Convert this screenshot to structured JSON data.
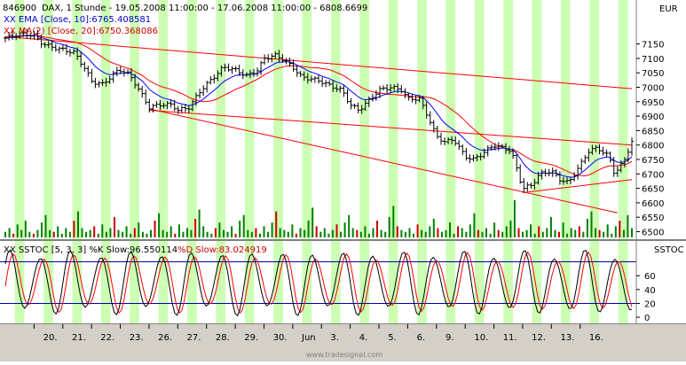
{
  "header": {
    "symbol": "846900",
    "description": "DAX, 1 Stunde - 19.05.2008 11:00:00 - 17.06.2008 11:00:00 - 6808.6699",
    "currency": "EUR"
  },
  "legend": {
    "ema": "XX EMA [Close, 10]:6765.408581",
    "ma": "XX MA(2) [Close, 20]:6750.368086",
    "stoch_k": "XX SSTOC [5, 3, 3] %K Slow:96.550114",
    "stoch_d": "%D Slow:83.024919",
    "stoch_panel": "SSTOC"
  },
  "colors": {
    "background": "#ffffff",
    "band_green": "#ccffb3",
    "price_ink": "#000000",
    "ema": "#0000ff",
    "ma": "#ff0000",
    "trendline": "#ff0000",
    "volume": "#008000",
    "volume_down": "#cc0000",
    "stoch_k": "#000000",
    "stoch_d": "#ff0000",
    "stoch_levels": "#0000aa"
  },
  "watermark": "www.tradesignal.com",
  "chart_data": {
    "type": "ohlc",
    "title": "DAX, 1 Stunde",
    "currency": "EUR",
    "y_ticks": [
      6500,
      6550,
      6600,
      6650,
      6700,
      6750,
      6800,
      6850,
      6900,
      6950,
      7000,
      7050,
      7100,
      7150
    ],
    "y_range": [
      6480,
      7210
    ],
    "x_labels": [
      "20.",
      "21.",
      "22.",
      "23.",
      "26.",
      "27.",
      "28.",
      "29.",
      "30.",
      "Jun",
      "3.",
      "4.",
      "5.",
      "6.",
      "9.",
      "10.",
      "11.",
      "12.",
      "13.",
      "16."
    ],
    "sessions": [
      "19.05",
      "20.05",
      "21.05",
      "22.05",
      "23.05",
      "26.05",
      "27.05",
      "28.05",
      "29.05",
      "30.05",
      "02.06",
      "03.06",
      "04.06",
      "05.06",
      "06.06",
      "09.06",
      "10.06",
      "11.06",
      "12.06",
      "13.06",
      "16.06",
      "17.06"
    ],
    "close_path": [
      [
        0,
        7170
      ],
      [
        0.5,
        7185
      ],
      [
        1,
        7180
      ],
      [
        1.3,
        7150
      ],
      [
        1.6,
        7140
      ],
      [
        2,
        7130
      ],
      [
        2.4,
        7120
      ],
      [
        2.8,
        7060
      ],
      [
        3,
        7020
      ],
      [
        3.4,
        7010
      ],
      [
        3.8,
        7050
      ],
      [
        4,
        7060
      ],
      [
        4.3,
        7045
      ],
      [
        4.6,
        7000
      ],
      [
        5,
        6930
      ],
      [
        5.4,
        6940
      ],
      [
        5.8,
        6940
      ],
      [
        6,
        6920
      ],
      [
        6.4,
        6930
      ],
      [
        6.8,
        6990
      ],
      [
        7,
        7010
      ],
      [
        7.3,
        7040
      ],
      [
        7.6,
        7070
      ],
      [
        8,
        7060
      ],
      [
        8.4,
        7040
      ],
      [
        8.8,
        7060
      ],
      [
        9,
        7100
      ],
      [
        9.4,
        7110
      ],
      [
        9.7,
        7095
      ],
      [
        10,
        7070
      ],
      [
        10.3,
        7035
      ],
      [
        10.6,
        7030
      ],
      [
        11,
        7020
      ],
      [
        11.3,
        7005
      ],
      [
        11.7,
        6990
      ],
      [
        12,
        6940
      ],
      [
        12.3,
        6920
      ],
      [
        12.7,
        6960
      ],
      [
        13,
        6990
      ],
      [
        13.4,
        7000
      ],
      [
        13.8,
        6990
      ],
      [
        14,
        6960
      ],
      [
        14.4,
        6960
      ],
      [
        14.7,
        6900
      ],
      [
        15,
        6830
      ],
      [
        15.3,
        6810
      ],
      [
        15.6,
        6820
      ],
      [
        16,
        6760
      ],
      [
        16.3,
        6750
      ],
      [
        16.6,
        6770
      ],
      [
        17,
        6800
      ],
      [
        17.3,
        6790
      ],
      [
        17.6,
        6780
      ],
      [
        18,
        6650
      ],
      [
        18.3,
        6660
      ],
      [
        18.6,
        6700
      ],
      [
        19,
        6710
      ],
      [
        19.3,
        6680
      ],
      [
        19.6,
        6670
      ],
      [
        20,
        6730
      ],
      [
        20.3,
        6780
      ],
      [
        20.6,
        6790
      ],
      [
        21,
        6760
      ],
      [
        21.2,
        6700
      ],
      [
        21.5,
        6740
      ],
      [
        21.8,
        6810
      ]
    ],
    "ema": {
      "name": "EMA [Close, 10]",
      "last": 6765.408581
    },
    "ma": {
      "name": "MA(2) [Close, 20]",
      "last": 6750.368086
    },
    "trendlines": [
      {
        "x1": 0,
        "y1": 7175,
        "x2": 21.8,
        "y2": 6995
      },
      {
        "x1": 5,
        "y1": 6920,
        "x2": 21.8,
        "y2": 6800
      },
      {
        "x1": 5,
        "y1": 6925,
        "x2": 21.3,
        "y2": 6565
      },
      {
        "x1": 18,
        "y1": 6635,
        "x2": 21.8,
        "y2": 6680
      }
    ],
    "volume_bars": [
      3,
      5,
      2,
      7,
      4,
      9,
      3,
      2,
      4,
      8,
      12,
      4,
      3,
      6,
      2,
      5,
      3,
      9,
      14,
      5,
      3,
      4,
      6,
      2,
      7,
      3,
      5,
      11,
      4,
      3,
      6,
      2,
      5,
      8,
      3,
      2,
      4,
      9,
      13,
      4,
      3,
      6,
      2,
      7,
      3,
      5,
      4,
      10,
      15,
      6,
      3,
      2,
      5,
      8,
      4,
      3,
      6,
      2,
      9,
      12,
      4,
      3,
      5,
      2,
      6,
      3,
      8,
      14,
      5,
      4,
      3,
      7,
      2,
      5,
      4,
      9,
      16,
      6,
      3,
      5,
      2,
      4,
      7,
      3,
      8,
      12,
      5,
      4,
      3,
      6,
      2,
      5,
      9,
      4,
      3,
      11,
      17,
      6,
      4,
      3,
      5,
      2,
      7,
      4,
      3,
      6,
      10,
      5,
      3,
      4,
      8,
      2,
      6,
      5,
      3,
      7,
      13,
      4,
      3,
      5,
      2,
      8,
      4,
      3,
      6,
      9,
      20,
      5,
      3,
      4,
      7,
      2,
      6,
      3,
      5,
      11,
      4,
      3,
      8,
      2,
      5,
      4,
      6,
      3,
      10,
      14,
      5,
      4,
      3,
      7,
      2,
      6,
      9,
      4,
      12,
      5
    ],
    "stoch": {
      "k_params": "SSTOC [5, 3, 3]",
      "k_last": 96.550114,
      "d_last": 83.024919,
      "levels": [
        80,
        20
      ],
      "ticks": [
        0,
        20,
        40,
        60
      ],
      "range": [
        -5,
        105
      ]
    }
  }
}
